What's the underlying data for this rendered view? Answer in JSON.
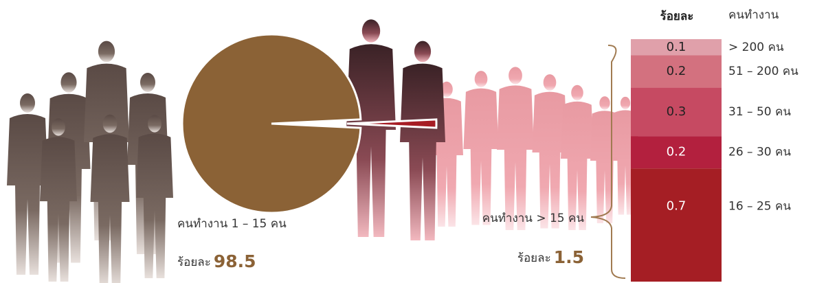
{
  "chart_data": [
    {
      "type": "pie",
      "categories": [
        "คนทำงาน 1 – 15 คน",
        "คนทำงาน > 15 คน"
      ],
      "values": [
        98.5,
        1.5
      ],
      "colors": [
        "#8b6236",
        "#a61c24"
      ],
      "value_prefix": "ร้อยละ"
    },
    {
      "type": "stacked-bar",
      "value_header": "ร้อยละ",
      "category_header": "คนทำงาน",
      "categories": [
        "> 200 คน",
        "51 – 200 คน",
        "31 – 50 คน",
        "26 – 30 คน",
        "16 – 25 คน"
      ],
      "values": [
        0.1,
        0.2,
        0.3,
        0.2,
        0.7
      ],
      "colors": [
        "#e0a0aa",
        "#d3717f",
        "#c64a62",
        "#b3203e",
        "#a51e24"
      ]
    }
  ]
}
